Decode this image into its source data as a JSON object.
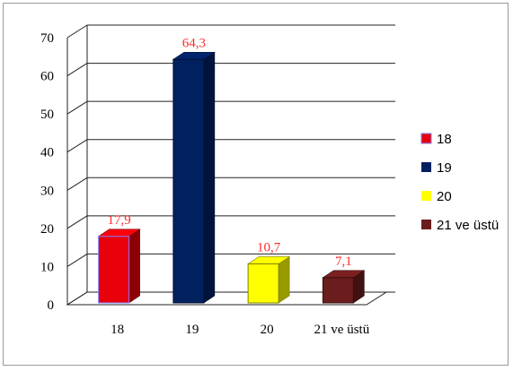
{
  "chart_data": {
    "type": "bar",
    "categories": [
      "18",
      "19",
      "20",
      "21 ve üstü"
    ],
    "values": [
      17.9,
      64.3,
      10.7,
      7.1
    ],
    "value_labels": [
      "17,9",
      "64,3",
      "10,7",
      "7,1"
    ],
    "y_ticks": [
      "0",
      "10",
      "20",
      "30",
      "40",
      "50",
      "60",
      "70"
    ],
    "ylim": [
      0,
      70
    ],
    "grid": true,
    "legend_position": "right",
    "legend": [
      "18",
      "19",
      "20",
      "21 ve üstü"
    ],
    "colors": [
      "#e8000b",
      "#002060",
      "#ffff00",
      "#6b1c1c"
    ],
    "label_color": "#ff2a2a"
  }
}
